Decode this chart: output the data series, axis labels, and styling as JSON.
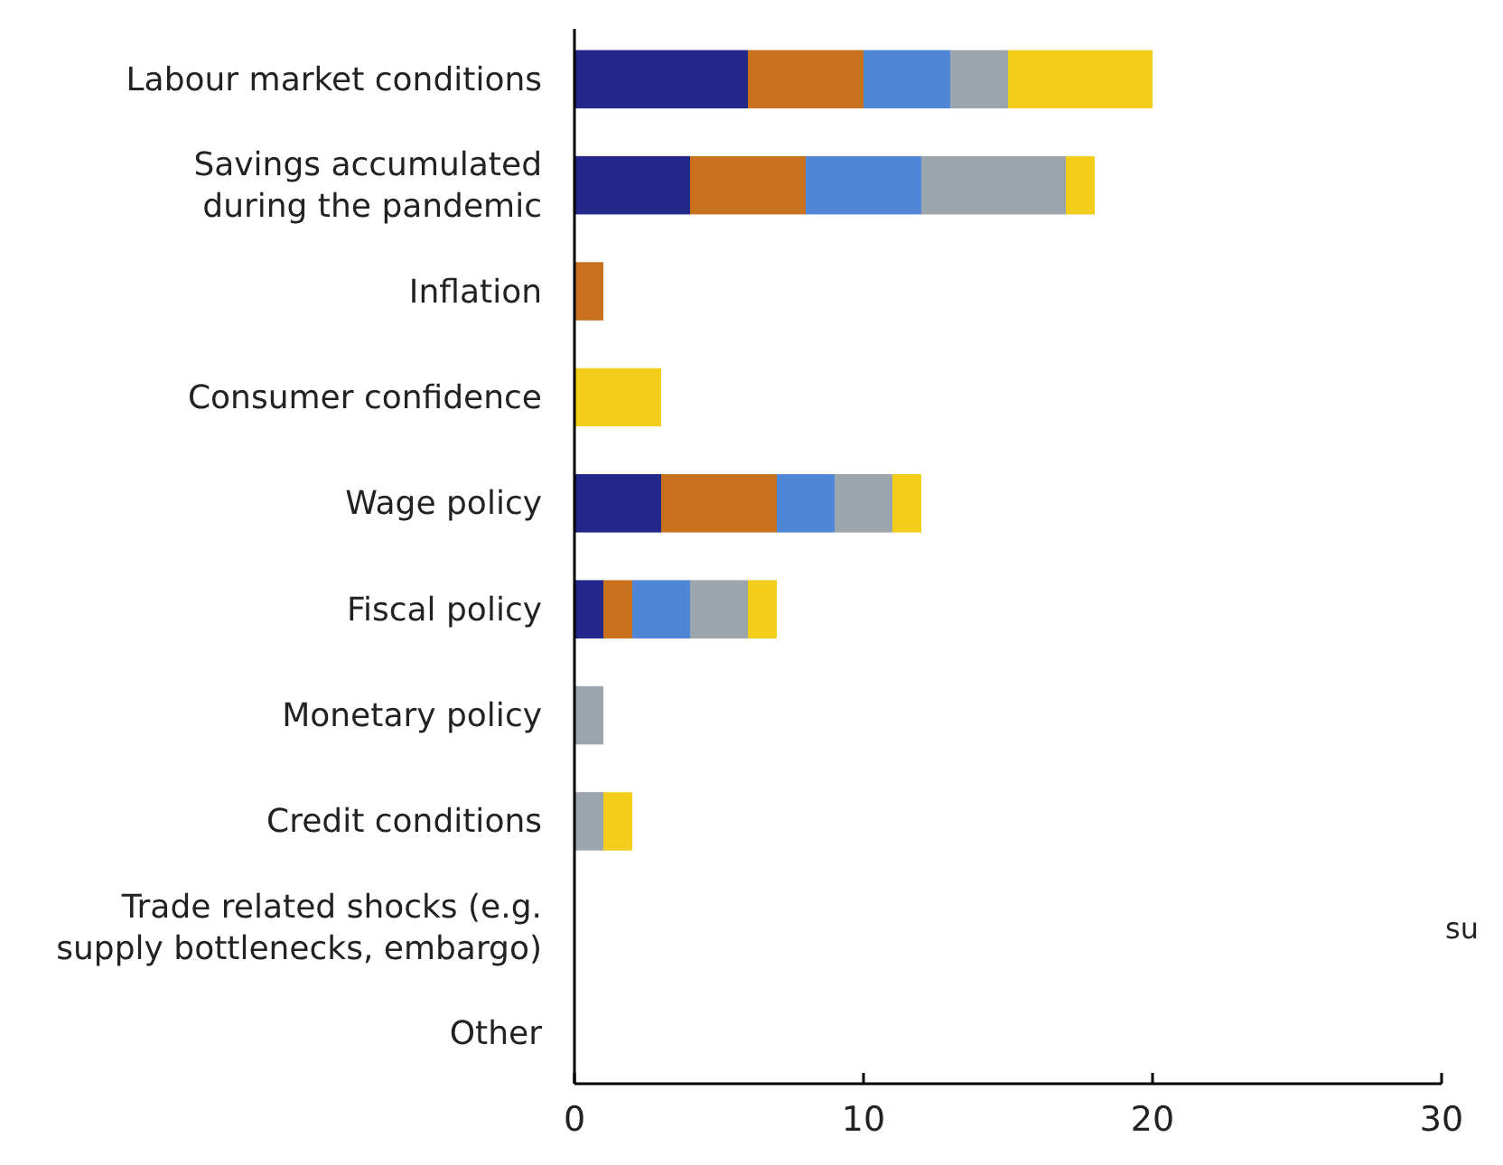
{
  "chart_data": {
    "type": "bar",
    "orientation": "horizontal",
    "stacked": true,
    "categories": [
      "Labour market conditions",
      "Savings accumulated during the pandemic",
      "Inflation",
      "Consumer confidence",
      "Wage policy",
      "Fiscal policy",
      "Monetary policy",
      "Credit conditions",
      "Trade related shocks (e.g. supply bottlenecks, embargo)",
      "Other"
    ],
    "series": [
      {
        "color": "#24278a",
        "values": [
          6,
          4,
          0,
          0,
          3,
          1,
          0,
          0,
          0,
          0
        ]
      },
      {
        "color": "#c8711f",
        "values": [
          4,
          4,
          1,
          0,
          4,
          1,
          0,
          0,
          0,
          0
        ]
      },
      {
        "color": "#4f87d6",
        "values": [
          3,
          4,
          0,
          0,
          2,
          2,
          0,
          0,
          0,
          0
        ]
      },
      {
        "color": "#9ba5ae",
        "values": [
          2,
          5,
          0,
          0,
          2,
          2,
          1,
          1,
          0,
          0
        ]
      },
      {
        "color": "#f2cd1b",
        "values": [
          5,
          1,
          0,
          3,
          1,
          1,
          0,
          1,
          0,
          0
        ]
      }
    ],
    "xlim": [
      0,
      30
    ],
    "xticks": [
      0,
      10,
      20,
      30
    ],
    "grid": false,
    "annotations": [
      "su"
    ]
  }
}
